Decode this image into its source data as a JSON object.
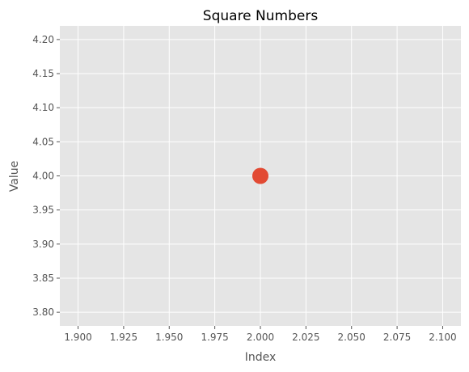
{
  "chart_data": {
    "type": "scatter",
    "title": "Square Numbers",
    "xlabel": "Index",
    "ylabel": "Value",
    "xlim": [
      1.89,
      2.11
    ],
    "ylim": [
      3.78,
      4.22
    ],
    "xticks": [
      "1.900",
      "1.925",
      "1.950",
      "1.975",
      "2.000",
      "2.025",
      "2.050",
      "2.075",
      "2.100"
    ],
    "yticks": [
      "3.80",
      "3.85",
      "3.90",
      "3.95",
      "4.00",
      "4.05",
      "4.10",
      "4.15",
      "4.20"
    ],
    "grid": true,
    "series": [
      {
        "x": [
          2
        ],
        "y": [
          4
        ],
        "color": "#e24a33"
      }
    ],
    "colors": {
      "plot_background": "#e5e5e5",
      "grid": "#ffffff",
      "text": "#555555"
    }
  }
}
